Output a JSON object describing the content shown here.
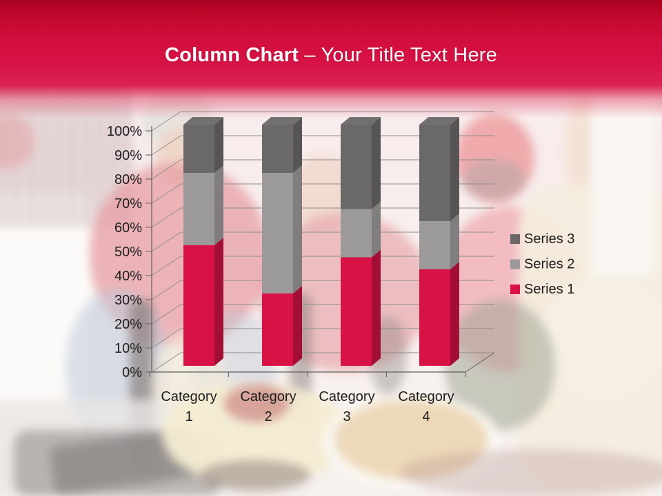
{
  "slide": {
    "title_bold": "Column Chart",
    "title_rest": "– Your Title Text Here",
    "banner_colors": {
      "top": "#a90120",
      "mid": "#d81347",
      "fade": "#e05a78"
    }
  },
  "chart_data": {
    "type": "bar",
    "subtype": "100-percent-stacked-3d-column",
    "title": "",
    "categories": [
      "Category 1",
      "Category 2",
      "Category 3",
      "Category 4"
    ],
    "series": [
      {
        "name": "Series 1",
        "values": [
          50,
          30,
          45,
          40
        ],
        "color": "#d81245",
        "side_color": "#a30e37"
      },
      {
        "name": "Series 2",
        "values": [
          30,
          50,
          20,
          20
        ],
        "color": "#9b999a",
        "side_color": "#7f7d7e"
      },
      {
        "name": "Series 3",
        "values": [
          20,
          20,
          35,
          40
        ],
        "color": "#6a6869",
        "side_color": "#565455",
        "top_color": "#716f70"
      }
    ],
    "unit": "percent",
    "ylim": [
      0,
      100
    ],
    "y_ticks": [
      "0%",
      "10%",
      "20%",
      "30%",
      "40%",
      "50%",
      "60%",
      "70%",
      "80%",
      "90%",
      "100%"
    ],
    "xlabel": "",
    "ylabel": "",
    "grid": true,
    "legend_position": "middle-right",
    "legend_order": [
      "Series 3",
      "Series 2",
      "Series 1"
    ],
    "colors": {
      "grid": "#8d8d8d",
      "axis": "#5f5f5f",
      "text": "#1d1d1d"
    }
  }
}
